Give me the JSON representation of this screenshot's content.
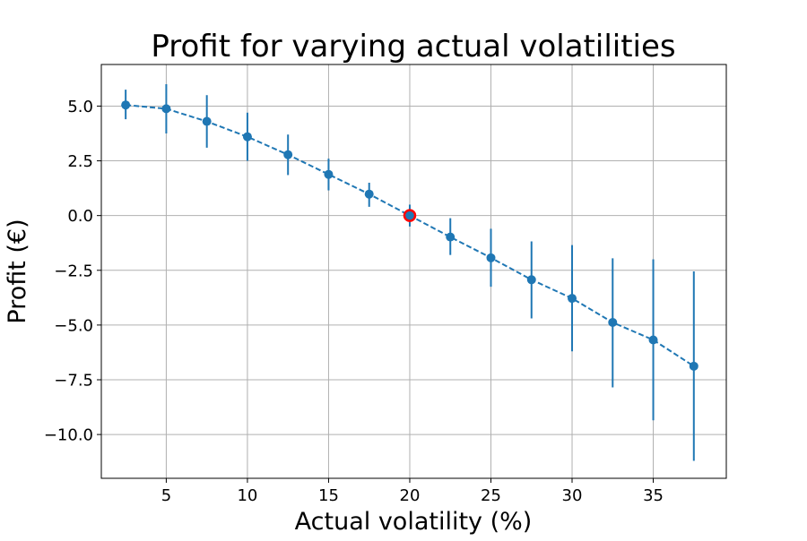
{
  "chart_data": {
    "type": "scatter",
    "title": "Profit for varying actual volatilities",
    "xlabel": "Actual volatility (%)",
    "ylabel": "Profit (€)",
    "xlim": [
      1.0,
      39.5
    ],
    "ylim": [
      -12.0,
      6.9
    ],
    "xticks": [
      5,
      10,
      15,
      20,
      25,
      30,
      35
    ],
    "yticks": [
      5.0,
      2.5,
      0.0,
      -2.5,
      -5.0,
      -7.5,
      -10.0
    ],
    "xtick_labels": [
      "5",
      "10",
      "15",
      "20",
      "25",
      "30",
      "35"
    ],
    "ytick_labels": [
      "5.0",
      "2.5",
      "0.0",
      "−2.5",
      "−5.0",
      "−7.5",
      "−10.0"
    ],
    "grid": true,
    "series": [
      {
        "style": "dashed line with circle markers and vertical error bars",
        "color": "#1f77b4",
        "x": [
          2.5,
          5,
          7.5,
          10,
          12.5,
          15,
          17.5,
          20,
          22.5,
          25,
          27.5,
          30,
          32.5,
          35,
          37.5
        ],
        "y": [
          5.05,
          4.88,
          4.3,
          3.6,
          2.78,
          1.88,
          0.98,
          0.0,
          -0.98,
          -1.93,
          -2.93,
          -3.78,
          -4.88,
          -5.68,
          -6.88
        ],
        "err_low": [
          4.4,
          3.75,
          3.1,
          2.5,
          1.85,
          1.15,
          0.4,
          -0.5,
          -1.8,
          -3.25,
          -4.7,
          -6.2,
          -7.85,
          -9.35,
          -11.2
        ],
        "err_high": [
          5.75,
          6.0,
          5.5,
          4.7,
          3.7,
          2.6,
          1.5,
          0.5,
          -0.12,
          -0.6,
          -1.18,
          -1.35,
          -1.95,
          -2.0,
          -2.55
        ]
      }
    ],
    "highlight_point": {
      "x": 20,
      "y": 0.0,
      "color": "#ff0000"
    }
  }
}
